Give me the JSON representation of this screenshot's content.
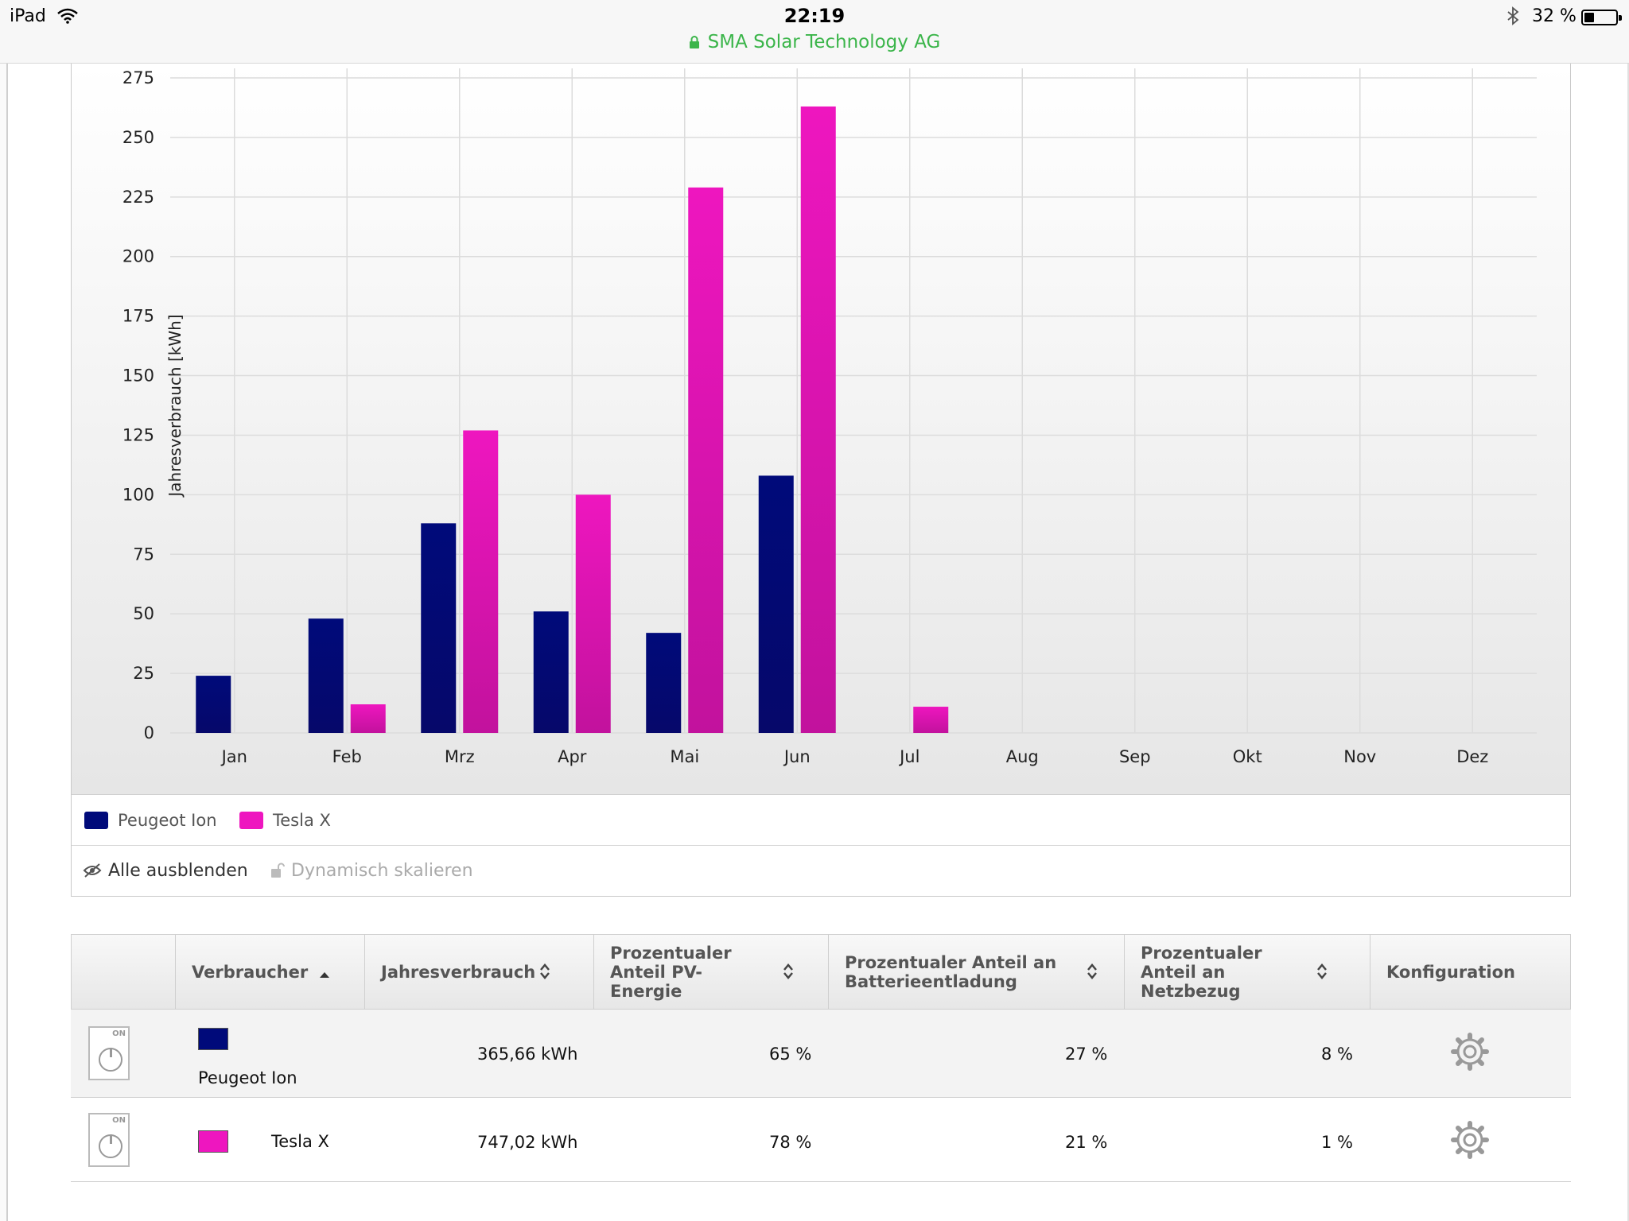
{
  "status_bar": {
    "device": "iPad",
    "time": "22:19",
    "url_title": "SMA Solar Technology AG",
    "battery": "32 %",
    "battery_level": 0.32
  },
  "colors": {
    "peugeot": "#000a7a",
    "tesla": "#ee16bf",
    "url_green": "#3bb54a"
  },
  "chart_data": {
    "type": "bar",
    "categories": [
      "Jan",
      "Feb",
      "Mrz",
      "Apr",
      "Mai",
      "Jun",
      "Jul",
      "Aug",
      "Sep",
      "Okt",
      "Nov",
      "Dez"
    ],
    "series": [
      {
        "name": "Peugeot Ion",
        "color": "#000a7a",
        "values": [
          24,
          48,
          88,
          51,
          42,
          108,
          0,
          0,
          0,
          0,
          0,
          0
        ]
      },
      {
        "name": "Tesla X",
        "color": "#ee16bf",
        "values": [
          0,
          12,
          127,
          100,
          229,
          263,
          11,
          0,
          0,
          0,
          0,
          0
        ]
      }
    ],
    "ylabel": "Jahresverbrauch [kWh]",
    "xlabel": "",
    "ylim": [
      0,
      275
    ],
    "yticks": [
      0,
      25,
      50,
      75,
      100,
      125,
      150,
      175,
      200,
      225,
      250,
      275
    ],
    "grid": true,
    "legend": "bottom"
  },
  "legend": {
    "items": [
      {
        "label": "Peugeot Ion",
        "color": "#000a7a"
      },
      {
        "label": "Tesla X",
        "color": "#ee16bf"
      }
    ]
  },
  "chart_actions": {
    "hide_all": "Alle ausblenden",
    "dynamic_scale": "Dynamisch skalieren"
  },
  "table": {
    "headers": {
      "consumer": "Verbraucher",
      "annual": "Jahresverbrauch",
      "pv_share_lines": [
        "Prozentualer",
        "Anteil PV-",
        "Energie"
      ],
      "battery_share_lines": [
        "Prozentualer Anteil an",
        "Batterieentladung"
      ],
      "grid_share_lines": [
        "Prozentualer",
        "Anteil an",
        "Netzbezug"
      ],
      "config": "Konfiguration"
    },
    "rows": [
      {
        "name": "Peugeot Ion",
        "color": "#000a7a",
        "switch_label": "ON",
        "annual": "365,66 kWh",
        "pv": "65 %",
        "battery": "27 %",
        "grid": "8 %"
      },
      {
        "name": "Tesla X",
        "color": "#ee16bf",
        "switch_label": "ON",
        "annual": "747,02 kWh",
        "pv": "78 %",
        "battery": "21 %",
        "grid": "1 %"
      }
    ]
  }
}
